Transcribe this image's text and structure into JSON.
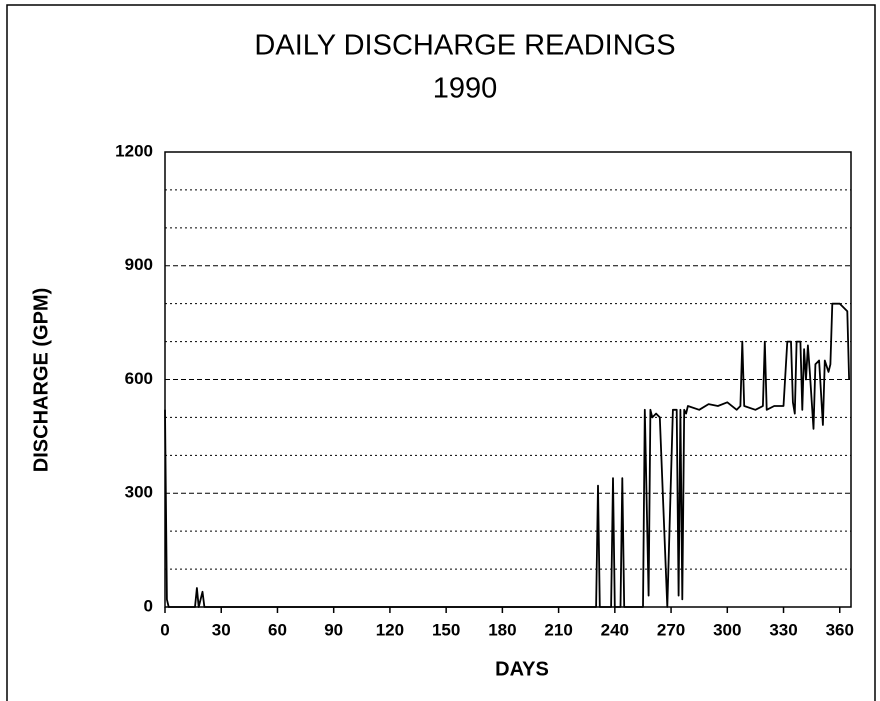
{
  "chart_data": {
    "type": "line",
    "title": "DAILY DISCHARGE READINGS",
    "subtitle": "1990",
    "x_label": "DAYS",
    "y_label": "DISCHARGE (GPM)",
    "xlim": [
      0,
      366
    ],
    "ylim": [
      0,
      1200
    ],
    "xticks": [
      0,
      30,
      60,
      90,
      120,
      150,
      180,
      210,
      240,
      270,
      300,
      330,
      360
    ],
    "yticks": [
      0,
      300,
      600,
      900,
      1200
    ],
    "minor_grid_y": [
      100,
      200,
      400,
      500,
      700,
      800,
      1000,
      1100
    ],
    "grid": true,
    "series": [
      {
        "name": "Discharge",
        "color": "#000000",
        "x": [
          0,
          1,
          2,
          16,
          17,
          18,
          20,
          21,
          230,
          231,
          232,
          238,
          239,
          240,
          243,
          244,
          245,
          255,
          256,
          258,
          259,
          260,
          262,
          264,
          268,
          271,
          273,
          274,
          275,
          276,
          277,
          278,
          279,
          285,
          290,
          295,
          300,
          305,
          307,
          308,
          309,
          315,
          319,
          320,
          321,
          325,
          330,
          332,
          334,
          335,
          336,
          337,
          339,
          340,
          341,
          342,
          343,
          344,
          346,
          347,
          349,
          351,
          352,
          354,
          355,
          356,
          360,
          364,
          365
        ],
        "values": [
          520,
          20,
          0,
          0,
          50,
          0,
          40,
          0,
          0,
          320,
          0,
          0,
          340,
          0,
          0,
          340,
          0,
          0,
          520,
          30,
          520,
          500,
          510,
          500,
          0,
          520,
          520,
          30,
          520,
          20,
          520,
          510,
          530,
          520,
          535,
          530,
          540,
          520,
          530,
          700,
          530,
          520,
          530,
          700,
          520,
          530,
          530,
          700,
          700,
          540,
          510,
          700,
          700,
          520,
          680,
          600,
          690,
          620,
          470,
          640,
          650,
          480,
          650,
          620,
          640,
          800,
          800,
          780,
          600
        ]
      }
    ]
  }
}
